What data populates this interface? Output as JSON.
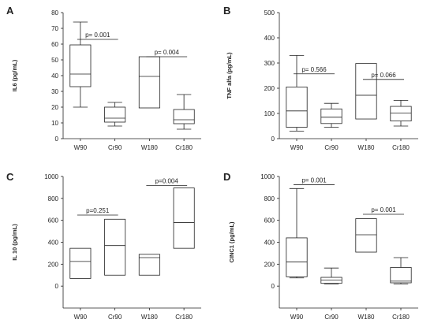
{
  "chart_data": [
    {
      "type": "box",
      "panel_letter": "A",
      "ylabel": "IL6 (pg/mL)",
      "xlabel": "",
      "ylim": [
        0,
        80
      ],
      "yticks": [
        0,
        10,
        20,
        30,
        40,
        50,
        60,
        70,
        80
      ],
      "categories": [
        "W90",
        "Cr90",
        "W180",
        "Cr180"
      ],
      "boxes": [
        {
          "min": 20,
          "q1": 33,
          "median": 41,
          "q3": 59.5,
          "max": 74
        },
        {
          "min": 8,
          "q1": 10.5,
          "median": 13,
          "q3": 20,
          "max": 23
        },
        {
          "min": 19.5,
          "q1": 19.5,
          "median": 39.5,
          "q3": 52,
          "max": 52
        },
        {
          "min": 6,
          "q1": 9.5,
          "median": 12,
          "q3": 18.5,
          "max": 28
        }
      ],
      "annotations": [
        {
          "from": 0,
          "to": 1,
          "at": 63,
          "text": "p= 0.001"
        },
        {
          "from": 2,
          "to": 3,
          "at": 52,
          "text": "p= 0.004"
        }
      ]
    },
    {
      "type": "box",
      "panel_letter": "B",
      "ylabel": "TNF alfa (pg/mL)",
      "xlabel": "",
      "ylim": [
        0,
        500
      ],
      "yticks": [
        0,
        100,
        200,
        300,
        400,
        500
      ],
      "categories": [
        "W90",
        "Cr90",
        "W180",
        "Cr180"
      ],
      "boxes": [
        {
          "min": 30,
          "q1": 45,
          "median": 110,
          "q3": 205,
          "max": 330
        },
        {
          "min": 45,
          "q1": 60,
          "median": 85,
          "q3": 118,
          "max": 140
        },
        {
          "min": 78,
          "q1": 78,
          "median": 172,
          "q3": 298,
          "max": 298
        },
        {
          "min": 50,
          "q1": 70,
          "median": 102,
          "q3": 128,
          "max": 152
        }
      ],
      "annotations": [
        {
          "from": 0,
          "to": 1,
          "at": 257,
          "text": "p= 0.566"
        },
        {
          "from": 2,
          "to": 3,
          "at": 235,
          "text": "p= 0.066"
        }
      ]
    },
    {
      "type": "box",
      "panel_letter": "C",
      "ylabel": "IL 10 (pg/mL)",
      "xlabel": "",
      "ylim": [
        -200,
        1000
      ],
      "yticks": [
        0,
        200,
        400,
        600,
        800,
        1000
      ],
      "categories": [
        "W90",
        "Cr90",
        "W180",
        "Cr180"
      ],
      "boxes": [
        {
          "min": 70,
          "q1": 70,
          "median": 225,
          "q3": 345,
          "max": 345
        },
        {
          "min": 100,
          "q1": 100,
          "median": 370,
          "q3": 610,
          "max": 610
        },
        {
          "min": 100,
          "q1": 100,
          "median": 260,
          "q3": 290,
          "max": 290
        },
        {
          "min": 345,
          "q1": 345,
          "median": 580,
          "q3": 895,
          "max": 895
        }
      ],
      "annotations": [
        {
          "from": 0,
          "to": 1,
          "at": 648,
          "text": "p=0.251"
        },
        {
          "from": 2,
          "to": 3,
          "at": 918,
          "text": "p=0.004"
        }
      ]
    },
    {
      "type": "box",
      "panel_letter": "D",
      "ylabel": "CINC1 (pg/mL)",
      "xlabel": "",
      "ylim": [
        -200,
        1000
      ],
      "yticks": [
        0,
        200,
        400,
        600,
        800,
        1000
      ],
      "categories": [
        "W90",
        "Cr90",
        "W180",
        "Cr180"
      ],
      "boxes": [
        {
          "min": 75,
          "q1": 85,
          "median": 220,
          "q3": 440,
          "max": 890
        },
        {
          "min": 20,
          "q1": 25,
          "median": 55,
          "q3": 80,
          "max": 165
        },
        {
          "min": 310,
          "q1": 310,
          "median": 468,
          "q3": 615,
          "max": 615
        },
        {
          "min": 20,
          "q1": 30,
          "median": 45,
          "q3": 170,
          "max": 260
        }
      ],
      "annotations": [
        {
          "from": 0,
          "to": 1,
          "at": 925,
          "text": "p= 0.001"
        },
        {
          "from": 2,
          "to": 3,
          "at": 655,
          "text": "p= 0.001"
        }
      ]
    }
  ]
}
